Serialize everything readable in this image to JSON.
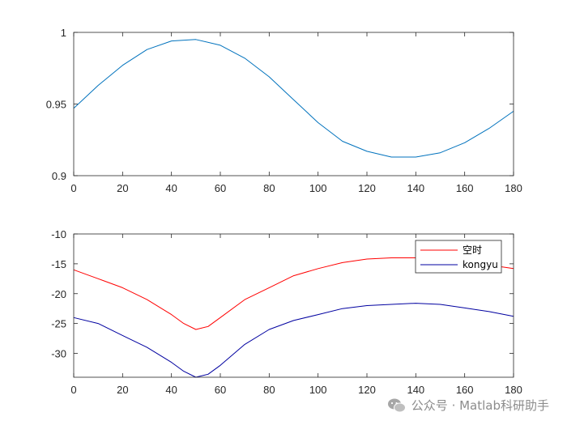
{
  "chart_data": [
    {
      "type": "line",
      "title": "",
      "xlabel": "",
      "ylabel": "",
      "xlim": [
        0,
        180
      ],
      "ylim": [
        0.9,
        1
      ],
      "xticks": [
        0,
        20,
        40,
        60,
        80,
        100,
        120,
        140,
        160,
        180
      ],
      "yticks": [
        0.9,
        0.95,
        1
      ],
      "ytick_labels": [
        "0.9",
        "0.95",
        "1"
      ],
      "grid": false,
      "series": [
        {
          "color": "#0072BD",
          "x": [
            0,
            10,
            20,
            30,
            40,
            50,
            60,
            70,
            80,
            90,
            100,
            110,
            120,
            130,
            140,
            150,
            160,
            170,
            180
          ],
          "y": [
            0.947,
            0.963,
            0.977,
            0.988,
            0.994,
            0.995,
            0.991,
            0.982,
            0.969,
            0.953,
            0.937,
            0.924,
            0.917,
            0.913,
            0.913,
            0.916,
            0.923,
            0.933,
            0.945
          ]
        }
      ]
    },
    {
      "type": "line",
      "title": "",
      "xlabel": "",
      "ylabel": "",
      "xlim": [
        0,
        180
      ],
      "ylim": [
        -34,
        -10
      ],
      "xticks": [
        0,
        20,
        40,
        60,
        80,
        100,
        120,
        140,
        160,
        180
      ],
      "yticks": [
        -30,
        -25,
        -20,
        -15,
        -10
      ],
      "ytick_labels": [
        "-30",
        "-25",
        "-20",
        "-15",
        "-10"
      ],
      "grid": false,
      "legend_position": "top-right",
      "series": [
        {
          "name": "空时",
          "color": "#ff0000",
          "x": [
            0,
            10,
            20,
            30,
            40,
            45,
            50,
            55,
            60,
            70,
            80,
            90,
            100,
            110,
            120,
            130,
            140,
            150,
            160,
            170,
            180
          ],
          "y": [
            -16,
            -17.5,
            -19,
            -21,
            -23.5,
            -25,
            -26,
            -25.5,
            -24,
            -21,
            -19,
            -17,
            -15.8,
            -14.8,
            -14.2,
            -14,
            -14,
            -14.2,
            -14.8,
            -15.2,
            -15.8
          ]
        },
        {
          "name": "kongyu",
          "color": "#0000a0",
          "x": [
            0,
            10,
            20,
            30,
            40,
            45,
            50,
            55,
            60,
            70,
            80,
            90,
            100,
            110,
            120,
            130,
            140,
            150,
            160,
            170,
            180
          ],
          "y": [
            -24,
            -25,
            -27,
            -29,
            -31.5,
            -33,
            -34,
            -33.5,
            -32,
            -28.5,
            -26,
            -24.5,
            -23.5,
            -22.5,
            -22,
            -21.8,
            -21.6,
            -21.8,
            -22.4,
            -23,
            -23.8
          ]
        }
      ]
    }
  ],
  "watermark": {
    "text": "公众号 · Matlab科研助手",
    "icon": "wechat-logo-icon"
  }
}
